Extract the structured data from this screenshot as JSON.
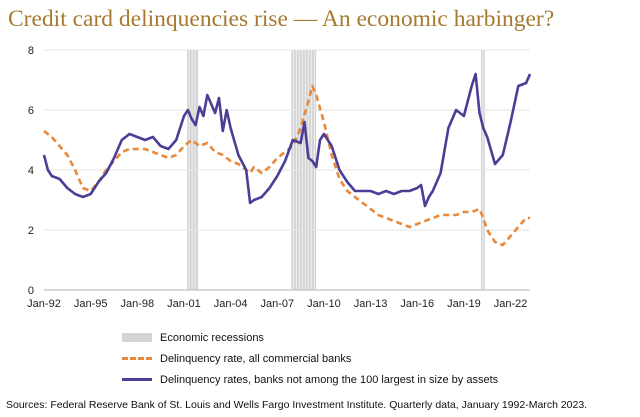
{
  "title": "Credit card delinquencies rise — An economic harbinger?",
  "source": "Sources: Federal Reserve Bank of St. Louis and Wells Fargo Investment Institute. Quarterly data, January 1992-March 2023.",
  "colors": {
    "title": "#a57a2f",
    "all_banks": "#e8883a",
    "small_banks": "#4a3f96",
    "recession": "#d4d4d4"
  },
  "chart_data": {
    "type": "line",
    "ylim": [
      0,
      8
    ],
    "yticks": [
      "0",
      "2",
      "4",
      "6",
      "8"
    ],
    "xlim": [
      1992.0,
      2023.25
    ],
    "xticks": [
      {
        "label": "Jan-92",
        "value": 1992
      },
      {
        "label": "Jan-95",
        "value": 1995
      },
      {
        "label": "Jan-98",
        "value": 1998
      },
      {
        "label": "Jan-01",
        "value": 2001
      },
      {
        "label": "Jan-04",
        "value": 2004
      },
      {
        "label": "Jan-07",
        "value": 2007
      },
      {
        "label": "Jan-10",
        "value": 2010
      },
      {
        "label": "Jan-13",
        "value": 2013
      },
      {
        "label": "Jan-16",
        "value": 2016
      },
      {
        "label": "Jan-19",
        "value": 2019
      },
      {
        "label": "Jan-22",
        "value": 2022
      }
    ],
    "recessions": [
      {
        "label": "Economic recessions",
        "start": 2001.2,
        "end": 2001.9
      },
      {
        "label": "Economic recessions",
        "start": 2007.9,
        "end": 2009.5
      },
      {
        "label": "Economic recessions",
        "start": 2020.1,
        "end": 2020.35
      }
    ],
    "legend": {
      "recessions": "Economic recessions",
      "all_banks": "Delinquency rate, all commercial banks",
      "small_banks": "Delinquency rates, banks not among the 100 largest in size by assets"
    },
    "series": [
      {
        "name": "Delinquency rate, all commercial banks",
        "style": "dashed",
        "points": [
          [
            1992.0,
            5.3
          ],
          [
            1992.5,
            5.1
          ],
          [
            1993.0,
            4.8
          ],
          [
            1993.5,
            4.5
          ],
          [
            1994.0,
            4.0
          ],
          [
            1994.5,
            3.4
          ],
          [
            1995.0,
            3.3
          ],
          [
            1995.5,
            3.6
          ],
          [
            1996.0,
            4.0
          ],
          [
            1996.5,
            4.3
          ],
          [
            1997.0,
            4.6
          ],
          [
            1997.5,
            4.7
          ],
          [
            1998.0,
            4.7
          ],
          [
            1998.5,
            4.7
          ],
          [
            1999.0,
            4.6
          ],
          [
            1999.5,
            4.5
          ],
          [
            2000.0,
            4.4
          ],
          [
            2000.5,
            4.5
          ],
          [
            2001.0,
            4.8
          ],
          [
            2001.5,
            5.0
          ],
          [
            2002.0,
            4.8
          ],
          [
            2002.5,
            4.9
          ],
          [
            2003.0,
            4.6
          ],
          [
            2003.5,
            4.5
          ],
          [
            2004.0,
            4.3
          ],
          [
            2004.5,
            4.2
          ],
          [
            2005.0,
            4.0
          ],
          [
            2005.25,
            3.9
          ],
          [
            2005.5,
            4.1
          ],
          [
            2006.0,
            3.9
          ],
          [
            2006.5,
            4.1
          ],
          [
            2007.0,
            4.4
          ],
          [
            2007.5,
            4.6
          ],
          [
            2008.0,
            4.8
          ],
          [
            2008.5,
            5.4
          ],
          [
            2009.0,
            6.3
          ],
          [
            2009.25,
            6.8
          ],
          [
            2009.5,
            6.5
          ],
          [
            2010.0,
            5.6
          ],
          [
            2010.5,
            4.5
          ],
          [
            2011.0,
            3.7
          ],
          [
            2011.5,
            3.3
          ],
          [
            2012.0,
            3.1
          ],
          [
            2012.5,
            2.9
          ],
          [
            2013.0,
            2.7
          ],
          [
            2013.5,
            2.5
          ],
          [
            2014.0,
            2.4
          ],
          [
            2014.5,
            2.3
          ],
          [
            2015.0,
            2.2
          ],
          [
            2015.5,
            2.1
          ],
          [
            2016.0,
            2.2
          ],
          [
            2016.5,
            2.3
          ],
          [
            2017.0,
            2.4
          ],
          [
            2017.5,
            2.5
          ],
          [
            2018.0,
            2.5
          ],
          [
            2018.5,
            2.5
          ],
          [
            2019.0,
            2.6
          ],
          [
            2019.5,
            2.6
          ],
          [
            2020.0,
            2.7
          ],
          [
            2020.25,
            2.4
          ],
          [
            2020.5,
            2.0
          ],
          [
            2021.0,
            1.6
          ],
          [
            2021.5,
            1.5
          ],
          [
            2022.0,
            1.8
          ],
          [
            2022.5,
            2.1
          ],
          [
            2023.0,
            2.4
          ],
          [
            2023.25,
            2.4
          ]
        ]
      },
      {
        "name": "Delinquency rates, banks not among the 100 largest in size by assets",
        "style": "solid",
        "points": [
          [
            1992.0,
            4.5
          ],
          [
            1992.25,
            4.0
          ],
          [
            1992.5,
            3.8
          ],
          [
            1993.0,
            3.7
          ],
          [
            1993.5,
            3.4
          ],
          [
            1994.0,
            3.2
          ],
          [
            1994.5,
            3.1
          ],
          [
            1995.0,
            3.2
          ],
          [
            1995.5,
            3.6
          ],
          [
            1996.0,
            3.9
          ],
          [
            1996.5,
            4.4
          ],
          [
            1997.0,
            5.0
          ],
          [
            1997.5,
            5.2
          ],
          [
            1998.0,
            5.1
          ],
          [
            1998.5,
            5.0
          ],
          [
            1999.0,
            5.1
          ],
          [
            1999.5,
            4.8
          ],
          [
            2000.0,
            4.7
          ],
          [
            2000.5,
            5.0
          ],
          [
            2001.0,
            5.8
          ],
          [
            2001.25,
            6.0
          ],
          [
            2001.5,
            5.7
          ],
          [
            2001.75,
            5.5
          ],
          [
            2002.0,
            6.1
          ],
          [
            2002.25,
            5.8
          ],
          [
            2002.5,
            6.5
          ],
          [
            2002.75,
            6.2
          ],
          [
            2003.0,
            5.9
          ],
          [
            2003.25,
            6.4
          ],
          [
            2003.5,
            5.3
          ],
          [
            2003.75,
            6.0
          ],
          [
            2004.0,
            5.4
          ],
          [
            2004.5,
            4.5
          ],
          [
            2005.0,
            4.0
          ],
          [
            2005.25,
            2.9
          ],
          [
            2005.5,
            3.0
          ],
          [
            2006.0,
            3.1
          ],
          [
            2006.5,
            3.4
          ],
          [
            2007.0,
            3.8
          ],
          [
            2007.5,
            4.3
          ],
          [
            2008.0,
            5.0
          ],
          [
            2008.5,
            4.9
          ],
          [
            2008.75,
            5.6
          ],
          [
            2009.0,
            4.4
          ],
          [
            2009.25,
            4.3
          ],
          [
            2009.5,
            4.1
          ],
          [
            2009.75,
            5.0
          ],
          [
            2010.0,
            5.2
          ],
          [
            2010.5,
            4.8
          ],
          [
            2011.0,
            4.0
          ],
          [
            2011.5,
            3.6
          ],
          [
            2012.0,
            3.3
          ],
          [
            2012.5,
            3.3
          ],
          [
            2013.0,
            3.3
          ],
          [
            2013.5,
            3.2
          ],
          [
            2014.0,
            3.3
          ],
          [
            2014.5,
            3.2
          ],
          [
            2015.0,
            3.3
          ],
          [
            2015.5,
            3.3
          ],
          [
            2016.0,
            3.4
          ],
          [
            2016.25,
            3.5
          ],
          [
            2016.5,
            2.8
          ],
          [
            2016.75,
            3.1
          ],
          [
            2017.0,
            3.3
          ],
          [
            2017.5,
            3.9
          ],
          [
            2018.0,
            5.4
          ],
          [
            2018.5,
            6.0
          ],
          [
            2019.0,
            5.8
          ],
          [
            2019.25,
            6.3
          ],
          [
            2019.5,
            6.8
          ],
          [
            2019.75,
            7.2
          ],
          [
            2020.0,
            5.9
          ],
          [
            2020.25,
            5.4
          ],
          [
            2020.5,
            5.1
          ],
          [
            2021.0,
            4.2
          ],
          [
            2021.5,
            4.5
          ],
          [
            2022.0,
            5.6
          ],
          [
            2022.5,
            6.8
          ],
          [
            2023.0,
            6.9
          ],
          [
            2023.25,
            7.2
          ]
        ]
      }
    ]
  }
}
